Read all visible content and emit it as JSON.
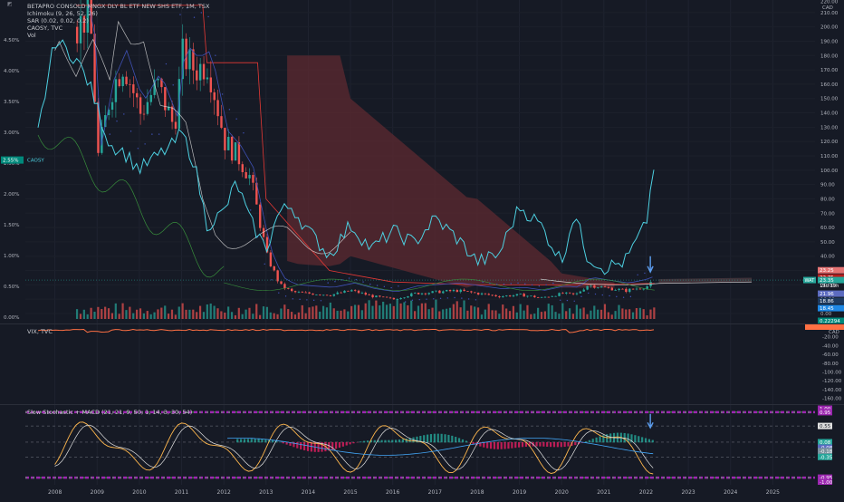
{
  "legend": {
    "symbol": "BETAPRO CONSOLD MNGX DLY BL ETF NEW SHS ETF, 1M, TSX",
    "ichimoku": "Ichimoku (9, 26, 52, 26)",
    "sar": "SAR (0.02, 0.02, 0.2)",
    "caosy": "CAOSY, TVC",
    "vol": "Vol",
    "vix": "VIX, TVC",
    "osc": "Slow Stochastic + MACD (21, 21, 9, 50, 1, 14, 3, 30, 54)"
  },
  "corner_label": "CAD",
  "vix_currency": "CAD",
  "price_axis": {
    "ticks": [
      "210.00",
      "200.00",
      "190.00",
      "180.00",
      "170.00",
      "160.00",
      "150.00",
      "140.00",
      "130.00",
      "120.00",
      "110.00",
      "100.00",
      "90.00",
      "80.00",
      "70.00",
      "60.00",
      "50.00",
      "40.00",
      "30.00",
      "20.00",
      "10.00",
      "0.00"
    ],
    "top_partial": "220.00"
  },
  "percent_axis": {
    "ticks": [
      "4.50%",
      "4.00%",
      "3.50%",
      "3.00%",
      "2.50%",
      "2.00%",
      "1.50%",
      "1.00%",
      "0.50%",
      "0.00%"
    ],
    "badge": "2.55%",
    "badge_symbol": "CAOSY"
  },
  "vix_axis": {
    "ticks": [
      "-20.00",
      "-40.00",
      "-60.00",
      "-80.00",
      "-100.00",
      "-120.00",
      "-140.00",
      "-160.00"
    ]
  },
  "osc_axis": {
    "ticks": [
      "1.00",
      "0.95",
      "0.55",
      "0.08",
      "-0.08",
      "-0.18",
      "-0.35",
      "-0.95",
      "-1.00"
    ]
  },
  "x_axis": {
    "years": [
      "2008",
      "2009",
      "2010",
      "2011",
      "2012",
      "2013",
      "2014",
      "2015",
      "2016",
      "2017",
      "2018",
      "2019",
      "2020",
      "2021",
      "2022",
      "2023",
      "2024",
      "2025"
    ]
  },
  "price_labels": {
    "ichimoku_a": "23.25",
    "ichimoku_b": "22.75",
    "close": "23.35",
    "countdown": "19d 19h",
    "sar": "21.96",
    "base": "18.86",
    "conv": "18.45",
    "vix_value": "0.22294",
    "left_badge": "WAT"
  },
  "colors": {
    "bg": "#161a25",
    "up": "#26a69a",
    "down": "#ef5350",
    "cyan": "#4dd0e1",
    "orange": "#ff7043",
    "cloud": "#5d2a30",
    "blue": "#3f51b5",
    "white": "#e0e0e0",
    "green_line": "#388e3c"
  },
  "chart_data": {
    "type": "line",
    "title": "BETAPRO CONSOLD MNGX DLY BL ETF NEW SHS ETF, 1M, TSX",
    "x": [
      2007.6,
      2008.0,
      2008.5,
      2008.8,
      2009.0,
      2009.3,
      2009.6,
      2010.0,
      2010.4,
      2010.8,
      2011.0,
      2011.3,
      2011.6,
      2012.0,
      2012.3,
      2012.6,
      2013.0,
      2013.3,
      2013.6,
      2014.0,
      2014.5,
      2015.0,
      2015.5,
      2016.0,
      2016.5,
      2017.0,
      2017.5,
      2018.0,
      2018.5,
      2019.0,
      2019.5,
      2020.0,
      2020.3,
      2020.6,
      2021.0,
      2021.5,
      2022.0,
      2022.2
    ],
    "series": [
      {
        "name": "price",
        "values": [
          150,
          185,
          200,
          210,
          110,
          155,
          175,
          140,
          160,
          130,
          180,
          170,
          175,
          120,
          110,
          95,
          40,
          20,
          15,
          14,
          13,
          16,
          12,
          10,
          14,
          15,
          16,
          14,
          12,
          13,
          11,
          14,
          13,
          20,
          18,
          16,
          19,
          23.35
        ]
      },
      {
        "name": "CAOSY",
        "values": [
          3.0,
          4.5,
          4.2,
          3.8,
          3.4,
          2.8,
          2.7,
          2.4,
          2.6,
          2.8,
          3.0,
          2.5,
          1.5,
          1.7,
          2.2,
          1.6,
          1.1,
          1.7,
          1.8,
          1.4,
          1.0,
          1.5,
          1.1,
          1.4,
          1.2,
          1.6,
          1.3,
          0.9,
          1.0,
          1.8,
          1.5,
          0.9,
          1.7,
          1.0,
          0.8,
          0.9,
          1.5,
          2.55
        ]
      }
    ],
    "ylim": [
      0,
      220
    ],
    "xlim": [
      2007.3,
      2026.0
    ]
  }
}
